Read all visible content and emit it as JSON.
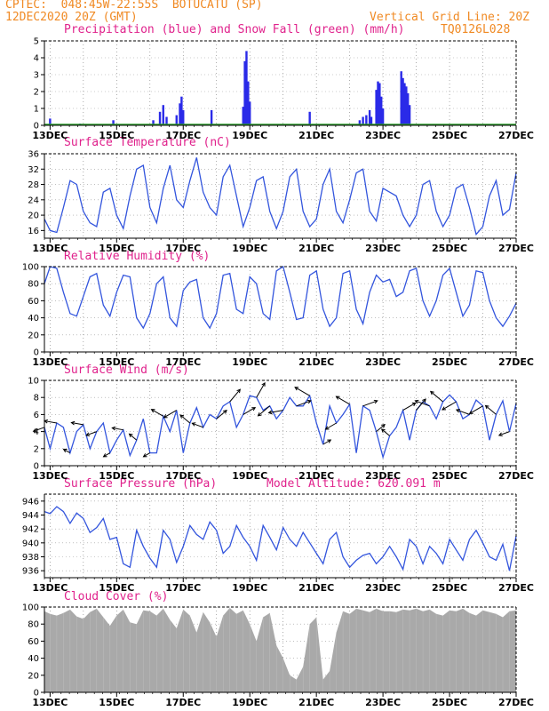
{
  "header": {
    "line1": "CPTEC:  048:45W-22:55S  BOTUCATU (SP)",
    "line2": "12DEC2020 20Z (GMT)",
    "grid_note": "Vertical Grid Line: 20Z",
    "code": "TQ0126L028",
    "altitude": "Model Altitude: 620.091 m"
  },
  "colors": {
    "precip": "#2a2ae8",
    "snow": "#2ca02c",
    "line": "#3355dd",
    "cloud": "#a9a9a9",
    "title": "#e0228c",
    "header": "#f08a24"
  },
  "chart_data": [
    {
      "type": "bar",
      "title": "Precipitation (blue) and Snow Fall (green) (mm/h)",
      "x_dates": [
        "13DEC",
        "15DEC",
        "17DEC",
        "19DEC",
        "21DEC",
        "23DEC",
        "25DEC",
        "27DEC"
      ],
      "ylim": [
        0,
        5
      ],
      "yticks": [
        0,
        1,
        2,
        3,
        4,
        5
      ],
      "x_domain": [
        12.83,
        27.0
      ],
      "bars": [
        [
          13.0,
          0.4
        ],
        [
          13.9,
          0.1
        ],
        [
          14.9,
          0.3
        ],
        [
          16.1,
          0.3
        ],
        [
          16.3,
          0.8
        ],
        [
          16.4,
          1.2
        ],
        [
          16.5,
          0.5
        ],
        [
          16.8,
          0.6
        ],
        [
          16.9,
          1.3
        ],
        [
          16.95,
          1.7
        ],
        [
          17.0,
          0.9
        ],
        [
          17.85,
          0.9
        ],
        [
          18.8,
          1.1
        ],
        [
          18.85,
          3.8
        ],
        [
          18.9,
          4.4
        ],
        [
          18.95,
          2.6
        ],
        [
          19.0,
          1.4
        ],
        [
          20.8,
          0.8
        ],
        [
          22.3,
          0.3
        ],
        [
          22.4,
          0.5
        ],
        [
          22.5,
          0.6
        ],
        [
          22.6,
          0.9
        ],
        [
          22.65,
          0.5
        ],
        [
          22.8,
          2.1
        ],
        [
          22.85,
          2.6
        ],
        [
          22.9,
          2.5
        ],
        [
          22.95,
          1.7
        ],
        [
          23.0,
          1.0
        ],
        [
          23.55,
          3.2
        ],
        [
          23.6,
          2.8
        ],
        [
          23.65,
          2.5
        ],
        [
          23.7,
          2.3
        ],
        [
          23.75,
          1.9
        ],
        [
          23.8,
          1.2
        ]
      ],
      "snow": "0 mm/h throughout (green baseline)"
    },
    {
      "type": "line",
      "title": "Surface Temperature (nC)",
      "x_dates": [
        "13DEC",
        "15DEC",
        "17DEC",
        "19DEC",
        "21DEC",
        "23DEC",
        "25DEC",
        "27DEC"
      ],
      "ylim": [
        14,
        36
      ],
      "yticks": [
        16,
        20,
        24,
        28,
        32,
        36
      ],
      "x_domain": [
        12.83,
        27.0
      ],
      "x": [
        12.83,
        13.0,
        13.2,
        13.4,
        13.6,
        13.8,
        14.0,
        14.2,
        14.4,
        14.6,
        14.8,
        15.0,
        15.2,
        15.4,
        15.6,
        15.8,
        16.0,
        16.2,
        16.4,
        16.6,
        16.8,
        17.0,
        17.2,
        17.4,
        17.6,
        17.8,
        18.0,
        18.2,
        18.4,
        18.6,
        18.8,
        19.0,
        19.2,
        19.4,
        19.6,
        19.8,
        20.0,
        20.2,
        20.4,
        20.6,
        20.8,
        21.0,
        21.2,
        21.4,
        21.6,
        21.8,
        22.0,
        22.2,
        22.4,
        22.6,
        22.8,
        23.0,
        23.2,
        23.4,
        23.6,
        23.8,
        24.0,
        24.2,
        24.4,
        24.6,
        24.8,
        25.0,
        25.2,
        25.4,
        25.6,
        25.8,
        26.0,
        26.2,
        26.4,
        26.6,
        26.8,
        27.0
      ],
      "y": [
        19,
        16,
        15.5,
        22,
        29,
        28,
        21,
        18,
        17,
        26,
        27,
        20,
        16.5,
        25,
        32,
        33,
        22,
        18,
        27,
        33,
        24,
        22,
        29,
        35,
        26,
        22,
        20,
        30,
        33,
        25,
        17,
        22,
        29,
        30,
        21,
        16.5,
        21,
        30,
        32,
        21,
        17,
        19,
        28,
        32,
        21,
        18,
        24,
        31,
        32,
        21,
        18.5,
        27,
        26,
        25,
        20,
        17,
        20,
        28,
        29,
        21,
        17,
        20,
        27,
        28,
        22,
        15,
        17,
        25,
        29,
        20,
        21.5,
        31
      ]
    },
    {
      "type": "line",
      "title": "Relative Humidity (%)",
      "x_dates": [
        "13DEC",
        "15DEC",
        "17DEC",
        "19DEC",
        "21DEC",
        "23DEC",
        "25DEC",
        "27DEC"
      ],
      "ylim": [
        0,
        100
      ],
      "yticks": [
        0,
        20,
        40,
        60,
        80,
        100
      ],
      "x_domain": [
        12.83,
        27.0
      ],
      "x": [
        12.83,
        13.0,
        13.2,
        13.4,
        13.6,
        13.8,
        14.0,
        14.2,
        14.4,
        14.6,
        14.8,
        15.0,
        15.2,
        15.4,
        15.6,
        15.8,
        16.0,
        16.2,
        16.4,
        16.6,
        16.8,
        17.0,
        17.2,
        17.4,
        17.6,
        17.8,
        18.0,
        18.2,
        18.4,
        18.6,
        18.8,
        19.0,
        19.2,
        19.4,
        19.6,
        19.8,
        20.0,
        20.2,
        20.4,
        20.6,
        20.8,
        21.0,
        21.2,
        21.4,
        21.6,
        21.8,
        22.0,
        22.2,
        22.4,
        22.6,
        22.8,
        23.0,
        23.2,
        23.4,
        23.6,
        23.8,
        24.0,
        24.2,
        24.4,
        24.6,
        24.8,
        25.0,
        25.2,
        25.4,
        25.6,
        25.8,
        26.0,
        26.2,
        26.4,
        26.6,
        26.8,
        27.0
      ],
      "y": [
        80,
        100,
        98,
        70,
        45,
        42,
        65,
        88,
        92,
        55,
        42,
        70,
        90,
        88,
        40,
        28,
        45,
        80,
        88,
        40,
        30,
        72,
        82,
        85,
        40,
        28,
        45,
        90,
        92,
        50,
        45,
        88,
        80,
        45,
        38,
        95,
        100,
        70,
        38,
        40,
        90,
        95,
        50,
        30,
        40,
        92,
        95,
        50,
        33,
        70,
        90,
        82,
        85,
        65,
        70,
        95,
        98,
        60,
        42,
        60,
        90,
        98,
        70,
        42,
        55,
        95,
        93,
        60,
        40,
        30,
        42,
        57
      ]
    },
    {
      "type": "line",
      "title": "Surface Wind (m/s)",
      "x_dates": [
        "13DEC",
        "15DEC",
        "17DEC",
        "19DEC",
        "21DEC",
        "23DEC",
        "25DEC",
        "27DEC"
      ],
      "ylim": [
        0,
        10
      ],
      "yticks": [
        0,
        2,
        4,
        6,
        8,
        10
      ],
      "x_domain": [
        12.83,
        27.0
      ],
      "x": [
        12.83,
        13.0,
        13.2,
        13.4,
        13.6,
        13.8,
        14.0,
        14.2,
        14.4,
        14.6,
        14.8,
        15.0,
        15.2,
        15.4,
        15.6,
        15.8,
        16.0,
        16.2,
        16.4,
        16.6,
        16.8,
        17.0,
        17.2,
        17.4,
        17.6,
        17.8,
        18.0,
        18.2,
        18.4,
        18.6,
        18.8,
        19.0,
        19.2,
        19.4,
        19.6,
        19.8,
        20.0,
        20.2,
        20.4,
        20.6,
        20.8,
        21.0,
        21.2,
        21.4,
        21.6,
        21.8,
        22.0,
        22.2,
        22.4,
        22.6,
        22.8,
        23.0,
        23.2,
        23.4,
        23.6,
        23.8,
        24.0,
        24.2,
        24.4,
        24.6,
        24.8,
        25.0,
        25.2,
        25.4,
        25.6,
        25.8,
        26.0,
        26.2,
        26.4,
        26.6,
        26.8,
        27.0
      ],
      "y": [
        4.5,
        2,
        5,
        4.5,
        1.5,
        4,
        4.8,
        2,
        4,
        5,
        1.5,
        3,
        4.2,
        1.2,
        3,
        5.5,
        1.5,
        1.5,
        5.8,
        4,
        6.5,
        1.5,
        5,
        6.8,
        4.5,
        6,
        5.5,
        7,
        7.5,
        4.5,
        6,
        8.2,
        8,
        6.5,
        7,
        5.5,
        6.5,
        8,
        7,
        7,
        8.2,
        5,
        2.5,
        7,
        5,
        6,
        7.2,
        1.5,
        7,
        6.5,
        4,
        1,
        3.5,
        4.5,
        6.5,
        3,
        6.5,
        7.5,
        7,
        5.5,
        7.5,
        8.3,
        7.5,
        5.5,
        6,
        7.7,
        7,
        3,
        6,
        7.6,
        4,
        7.3
      ],
      "wind_arrows": "direction vectors drawn along series"
    },
    {
      "type": "line",
      "title": "Surface Pressure (hPa)",
      "x_dates": [
        "13DEC",
        "15DEC",
        "17DEC",
        "19DEC",
        "21DEC",
        "23DEC",
        "25DEC",
        "27DEC"
      ],
      "ylim": [
        935,
        947
      ],
      "yticks": [
        936,
        938,
        940,
        942,
        944,
        946
      ],
      "x_domain": [
        12.83,
        27.0
      ],
      "x": [
        12.83,
        13.0,
        13.2,
        13.4,
        13.6,
        13.8,
        14.0,
        14.2,
        14.4,
        14.6,
        14.8,
        15.0,
        15.2,
        15.4,
        15.6,
        15.8,
        16.0,
        16.2,
        16.4,
        16.6,
        16.8,
        17.0,
        17.2,
        17.4,
        17.6,
        17.8,
        18.0,
        18.2,
        18.4,
        18.6,
        18.8,
        19.0,
        19.2,
        19.4,
        19.6,
        19.8,
        20.0,
        20.2,
        20.4,
        20.6,
        20.8,
        21.0,
        21.2,
        21.4,
        21.6,
        21.8,
        22.0,
        22.2,
        22.4,
        22.6,
        22.8,
        23.0,
        23.2,
        23.4,
        23.6,
        23.8,
        24.0,
        24.2,
        24.4,
        24.6,
        24.8,
        25.0,
        25.2,
        25.4,
        25.6,
        25.8,
        26.0,
        26.2,
        26.4,
        26.6,
        26.8,
        27.0
      ],
      "y": [
        944.5,
        944.2,
        945.2,
        944.5,
        942.8,
        944.3,
        943.5,
        941.5,
        942.2,
        943.5,
        940.5,
        940.8,
        937.0,
        936.5,
        941.8,
        939.5,
        937.8,
        936.5,
        941.8,
        940.5,
        937.2,
        939.5,
        942.5,
        941.2,
        940.5,
        943.0,
        941.8,
        938.5,
        939.5,
        942.5,
        940.8,
        939.5,
        937.5,
        942.5,
        940.8,
        939.0,
        942.2,
        940.5,
        939.5,
        941.5,
        940.0,
        938.5,
        937.0,
        940.5,
        941.5,
        938.0,
        936.5,
        937.5,
        938.2,
        938.5,
        937.0,
        938.0,
        939.5,
        938.0,
        936.2,
        940.5,
        939.5,
        937.0,
        939.5,
        938.5,
        937.0,
        940.5,
        939.0,
        937.5,
        940.5,
        941.8,
        940.0,
        938.0,
        937.5,
        939.8,
        936.0,
        941.0
      ]
    },
    {
      "type": "area",
      "title": "Cloud Cover (%)",
      "x_dates": [
        "13DEC",
        "15DEC",
        "17DEC",
        "19DEC",
        "21DEC",
        "23DEC",
        "25DEC",
        "27DEC"
      ],
      "ylim": [
        0,
        100
      ],
      "yticks": [
        0,
        20,
        40,
        60,
        80,
        100
      ],
      "x_domain": [
        12.83,
        27.0
      ],
      "x": [
        12.83,
        13.0,
        13.2,
        13.4,
        13.6,
        13.8,
        14.0,
        14.2,
        14.4,
        14.6,
        14.8,
        15.0,
        15.2,
        15.4,
        15.6,
        15.8,
        16.0,
        16.2,
        16.4,
        16.6,
        16.8,
        17.0,
        17.2,
        17.4,
        17.6,
        17.8,
        18.0,
        18.2,
        18.4,
        18.6,
        18.8,
        19.0,
        19.2,
        19.4,
        19.6,
        19.8,
        20.0,
        20.2,
        20.4,
        20.6,
        20.8,
        21.0,
        21.2,
        21.4,
        21.6,
        21.8,
        22.0,
        22.2,
        22.4,
        22.6,
        22.8,
        23.0,
        23.2,
        23.4,
        23.6,
        23.8,
        24.0,
        24.2,
        24.4,
        24.6,
        24.8,
        25.0,
        25.2,
        25.4,
        25.6,
        25.8,
        26.0,
        26.2,
        26.4,
        26.6,
        26.8,
        27.0
      ],
      "y": [
        95,
        92,
        90,
        93,
        97,
        89,
        86,
        94,
        98,
        88,
        78,
        90,
        97,
        82,
        80,
        96,
        95,
        90,
        98,
        85,
        75,
        97,
        90,
        70,
        94,
        82,
        65,
        90,
        99,
        92,
        96,
        80,
        60,
        88,
        93,
        55,
        40,
        20,
        15,
        30,
        80,
        88,
        15,
        25,
        70,
        95,
        92,
        98,
        96,
        94,
        98,
        95,
        95,
        94,
        97,
        96,
        98,
        95,
        97,
        92,
        90,
        96,
        95,
        98,
        93,
        90,
        96,
        94,
        92,
        88,
        95,
        96
      ]
    }
  ]
}
